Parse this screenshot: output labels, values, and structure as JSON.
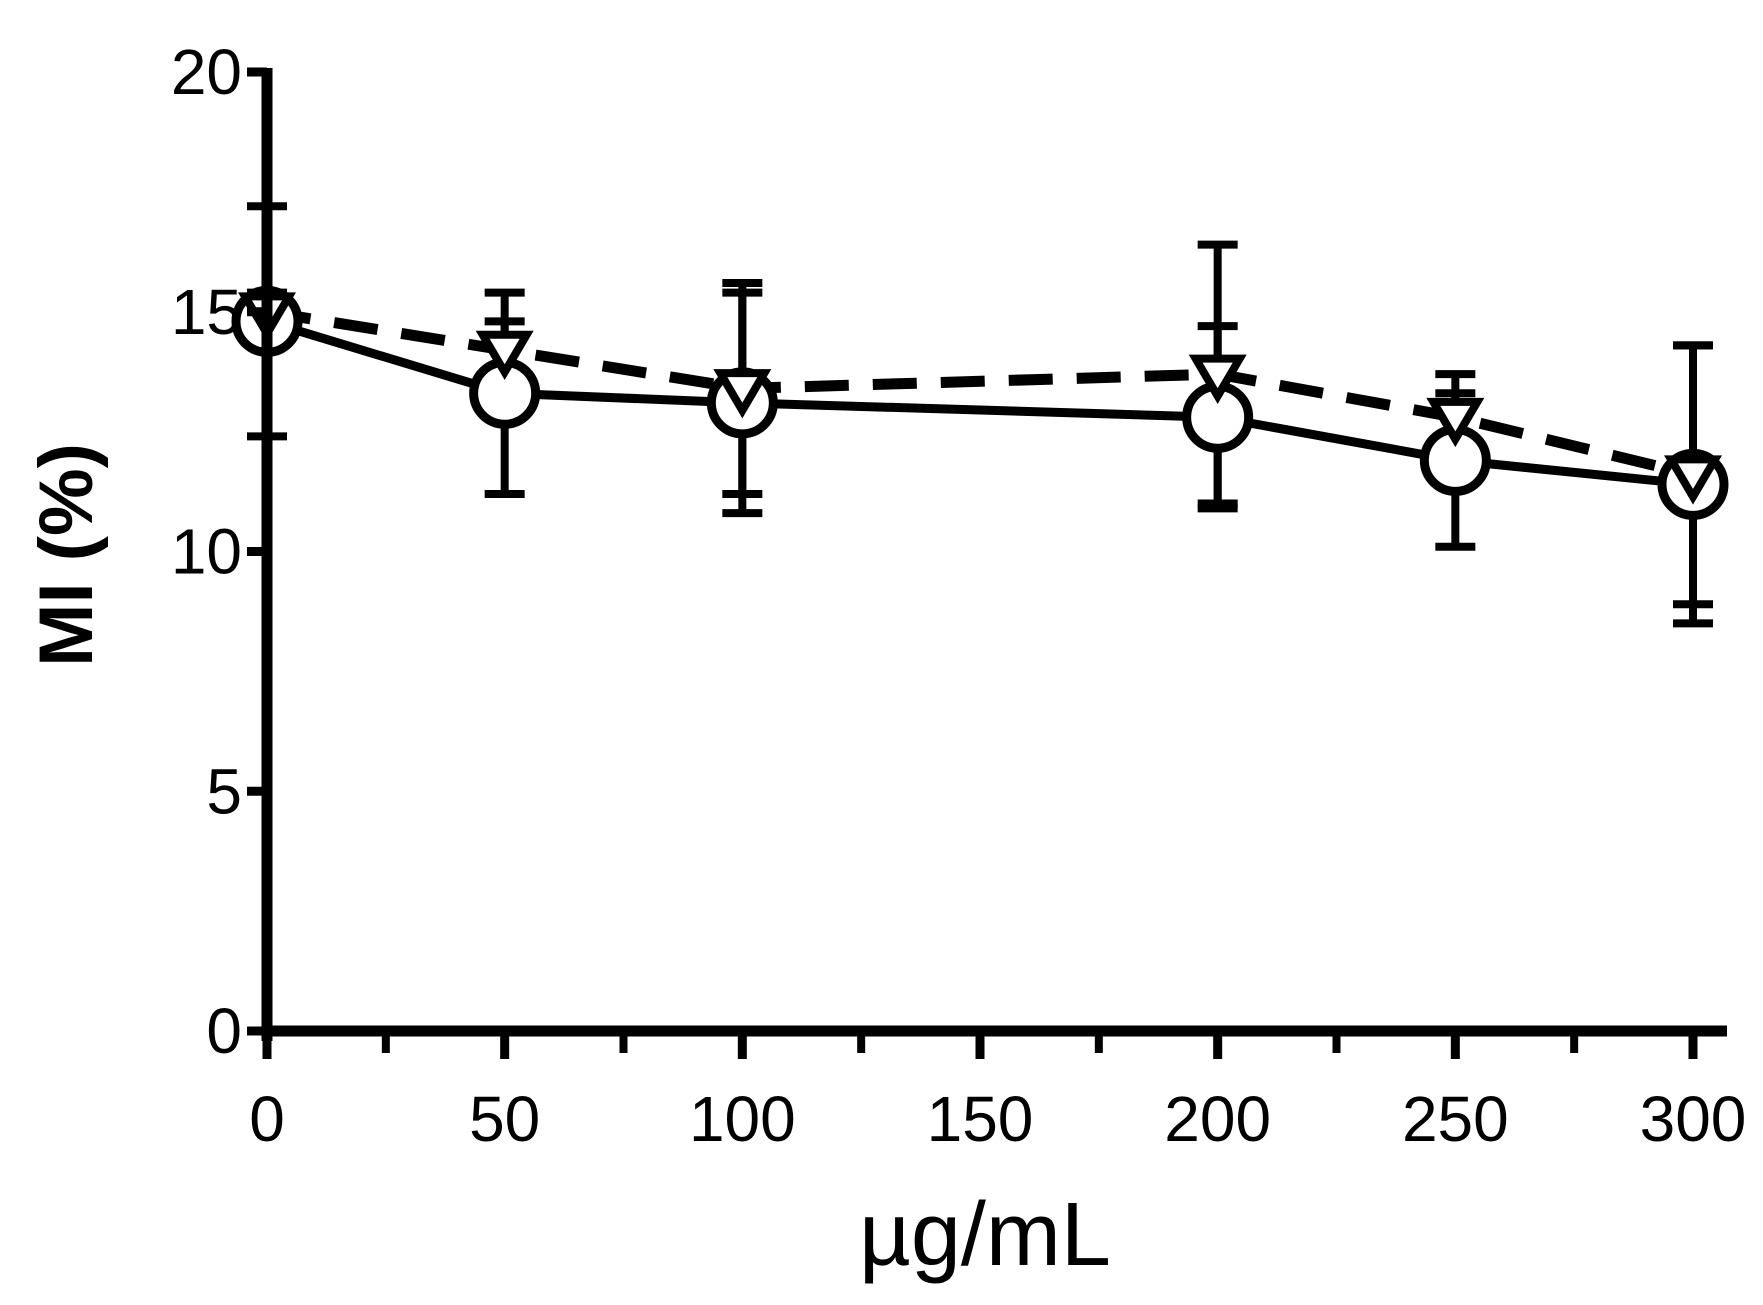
{
  "chart_data": {
    "type": "line",
    "xlabel": "µg/mL",
    "ylabel": "MI (%)",
    "xlim": [
      0,
      300
    ],
    "ylim": [
      0,
      20
    ],
    "x_ticks": [
      0,
      50,
      100,
      150,
      200,
      250,
      300
    ],
    "y_ticks": [
      0,
      5,
      10,
      15,
      20
    ],
    "x_minor_ticks": [
      25,
      75,
      125,
      175,
      225,
      275
    ],
    "grid": false,
    "legend": "none",
    "x": [
      0,
      50,
      100,
      200,
      250,
      300
    ],
    "series": [
      {
        "marker": "circle-open",
        "line_style": "solid",
        "values": [
          14.8,
          13.3,
          13.1,
          12.8,
          11.9,
          11.4
        ],
        "error": [
          2.4,
          2.1,
          2.3,
          1.9,
          1.8,
          2.9
        ]
      },
      {
        "marker": "triangle-down-open",
        "line_style": "dashed",
        "values": [
          15.0,
          14.2,
          13.4,
          13.7,
          12.8,
          11.6
        ],
        "error": [
          0.4,
          0.6,
          2.2,
          2.7,
          0.5,
          2.7
        ]
      }
    ]
  }
}
